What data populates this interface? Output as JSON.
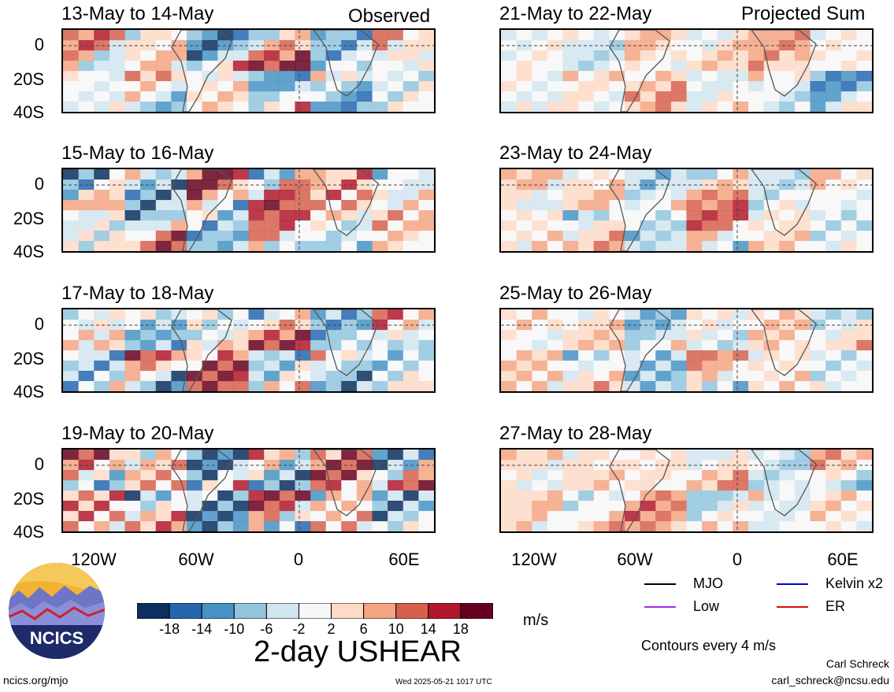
{
  "panels": [
    {
      "title": "13-May to 14-May",
      "tag": "Observed"
    },
    {
      "title": "15-May to 16-May",
      "tag": ""
    },
    {
      "title": "17-May to 18-May",
      "tag": ""
    },
    {
      "title": "19-May to 20-May",
      "tag": ""
    },
    {
      "title": "21-May to 22-May",
      "tag": "Projected Sum"
    },
    {
      "title": "23-May to 24-May",
      "tag": ""
    },
    {
      "title": "25-May to 26-May",
      "tag": ""
    },
    {
      "title": "27-May to 28-May",
      "tag": ""
    }
  ],
  "lat_labels": [
    "0",
    "20S",
    "40S"
  ],
  "lon_labels": [
    "120W",
    "60W",
    "0",
    "60E"
  ],
  "colorbar": {
    "ticks": [
      "-18",
      "-14",
      "-10",
      "-6",
      "-2",
      "2",
      "6",
      "10",
      "14",
      "18"
    ],
    "colors": [
      "#0b2f5e",
      "#2467ae",
      "#4693c4",
      "#92c5de",
      "#d1e5f0",
      "#f7f7f7",
      "#fddbc7",
      "#f4a582",
      "#d6604d",
      "#b2182b",
      "#67001f"
    ],
    "unit": "m/s"
  },
  "title": "2-day USHEAR",
  "legend": [
    {
      "label": "MJO",
      "color": "#000000"
    },
    {
      "label": "Kelvin x2",
      "color": "#0000cc"
    },
    {
      "label": "Low",
      "color": "#9b30e0"
    },
    {
      "label": "ER",
      "color": "#cc1111"
    }
  ],
  "contour_note": "Contours every 4 m/s",
  "author": "Carl Schreck",
  "email": "carl_schreck@ncsu.edu",
  "url": "ncics.org/mjo",
  "timestamp": "Wed 2025-05-21 1017 UTC",
  "logo_text": "NCICS"
}
